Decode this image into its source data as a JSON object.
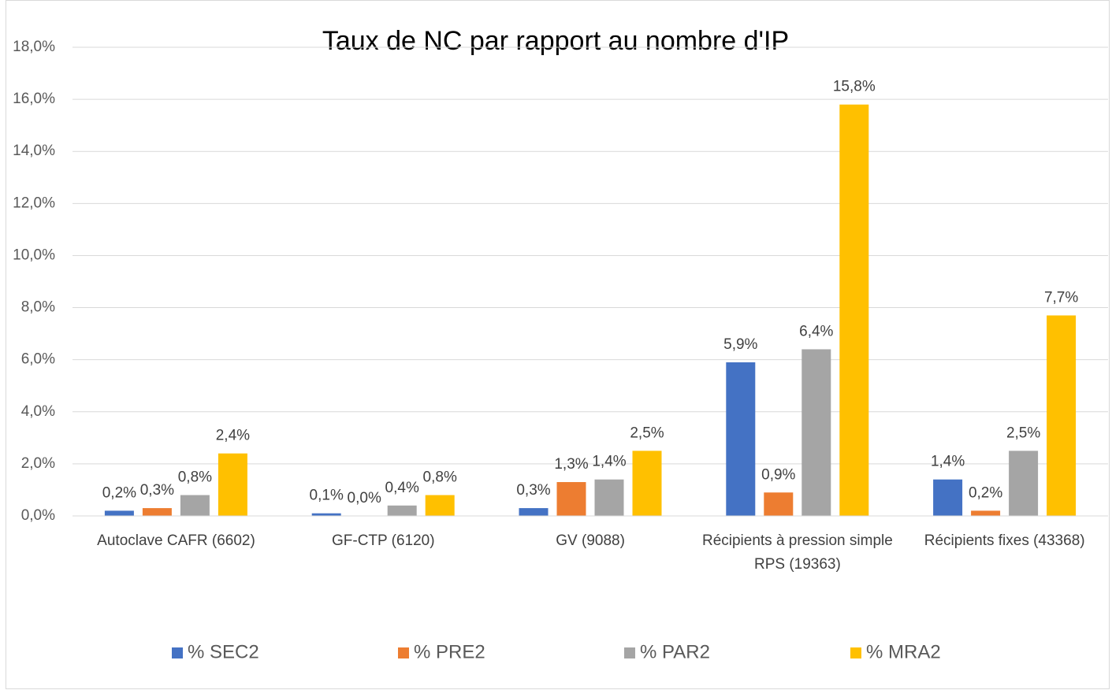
{
  "chart_data": {
    "type": "bar",
    "title": "Taux de NC par rapport au nombre d'IP",
    "categories": [
      "Autoclave CAFR (6602)",
      "GF-CTP (6120)",
      "GV (9088)",
      "Récipients à pression simple RPS (19363)",
      "Récipients fixes (43368)"
    ],
    "series": [
      {
        "name": "% SEC2",
        "color": "#4472c4",
        "values": [
          0.2,
          0.1,
          0.3,
          5.9,
          1.4
        ],
        "value_labels": [
          "0,2%",
          "0,1%",
          "0,3%",
          "5,9%",
          "1,4%"
        ]
      },
      {
        "name": "% PRE2",
        "color": "#ed7d31",
        "values": [
          0.3,
          0.0,
          1.3,
          0.9,
          0.2
        ],
        "value_labels": [
          "0,3%",
          "0,0%",
          "1,3%",
          "0,9%",
          "0,2%"
        ]
      },
      {
        "name": "% PAR2",
        "color": "#a5a5a5",
        "values": [
          0.8,
          0.4,
          1.4,
          6.4,
          2.5
        ],
        "value_labels": [
          "0,8%",
          "0,4%",
          "1,4%",
          "6,4%",
          "2,5%"
        ]
      },
      {
        "name": "% MRA2",
        "color": "#ffc000",
        "values": [
          2.4,
          0.8,
          2.5,
          15.8,
          7.7
        ],
        "value_labels": [
          "2,4%",
          "0,8%",
          "2,5%",
          "15,8%",
          "7,7%"
        ]
      }
    ],
    "ylim": [
      0,
      18
    ],
    "yticks": [
      {
        "value": 0,
        "label": "0,0%"
      },
      {
        "value": 2,
        "label": "2,0%"
      },
      {
        "value": 4,
        "label": "4,0%"
      },
      {
        "value": 6,
        "label": "6,0%"
      },
      {
        "value": 8,
        "label": "8,0%"
      },
      {
        "value": 10,
        "label": "10,0%"
      },
      {
        "value": 12,
        "label": "12,0%"
      },
      {
        "value": 14,
        "label": "14,0%"
      },
      {
        "value": 16,
        "label": "16,0%"
      },
      {
        "value": 18,
        "label": "18,0%"
      }
    ],
    "grid": true,
    "legend": "bottom"
  }
}
